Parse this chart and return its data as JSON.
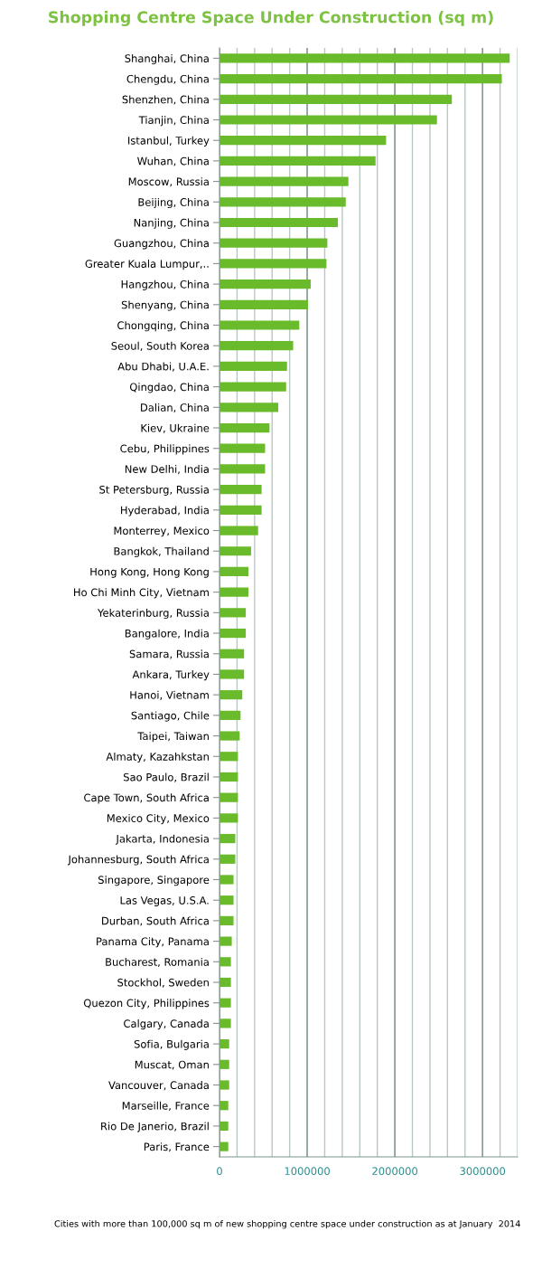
{
  "chart_data": {
    "type": "bar",
    "orientation": "horizontal",
    "title": "Shopping Centre Space Under Construction (sq m)",
    "categories": [
      "Shanghai, China",
      "Chengdu, China",
      "Shenzhen, China",
      "Tianjin, China",
      "Istanbul, Turkey",
      "Wuhan, China",
      "Moscow, Russia",
      "Beijing, China",
      "Nanjing, China",
      "Guangzhou, China",
      "Greater Kuala Lumpur,..",
      "Hangzhou, China",
      "Shenyang, China",
      "Chongqing, China",
      "Seoul, South Korea",
      "Abu Dhabi, U.A.E.",
      "Qingdao, China",
      "Dalian, China",
      "Kiev, Ukraine",
      "Cebu, Philippines",
      "New Delhi, India",
      "St Petersburg, Russia",
      "Hyderabad, India",
      "Monterrey, Mexico",
      "Bangkok, Thailand",
      "Hong Kong, Hong Kong",
      "Ho Chi Minh City, Vietnam",
      "Yekaterinburg, Russia",
      "Bangalore, India",
      "Samara, Russia",
      "Ankara, Turkey",
      "Hanoi, Vietnam",
      "Santiago, Chile",
      "Taipei, Taiwan",
      "Almaty, Kazahkstan",
      "Sao Paulo, Brazil",
      "Cape Town, South Africa",
      "Mexico City, Mexico",
      "Jakarta, Indonesia",
      "Johannesburg, South Africa",
      "Singapore, Singapore",
      "Las Vegas, U.S.A.",
      "Durban, South Africa",
      "Panama City, Panama",
      "Bucharest, Romania",
      "Stockhol, Sweden",
      "Quezon City, Philippines",
      "Calgary, Canada",
      "Sofia, Bulgaria",
      "Muscat, Oman",
      "Vancouver, Canada",
      "Marseille, France",
      "Rio De Janerio, Brazil",
      "Paris, France"
    ],
    "values": [
      3310000,
      3220000,
      2650000,
      2480000,
      1900000,
      1780000,
      1470000,
      1440000,
      1350000,
      1230000,
      1220000,
      1040000,
      1010000,
      910000,
      840000,
      770000,
      760000,
      670000,
      570000,
      520000,
      520000,
      480000,
      480000,
      440000,
      360000,
      330000,
      330000,
      300000,
      300000,
      280000,
      280000,
      260000,
      240000,
      230000,
      210000,
      210000,
      210000,
      210000,
      180000,
      180000,
      160000,
      160000,
      160000,
      140000,
      130000,
      130000,
      130000,
      130000,
      110000,
      110000,
      110000,
      100000,
      100000,
      100000
    ],
    "color": "#6abb2b",
    "xlim": [
      0,
      3400000
    ],
    "xticks": [
      0,
      {
        "value": 200000,
        "label": null
      },
      {
        "value": 400000,
        "label": null
      },
      {
        "value": 600000,
        "label": null
      },
      {
        "value": 800000,
        "label": null
      },
      1000000,
      {
        "value": 1200000,
        "label": null
      },
      {
        "value": 1400000,
        "label": null
      },
      {
        "value": 1600000,
        "label": null
      },
      {
        "value": 1800000,
        "label": null
      },
      2000000,
      {
        "value": 2200000,
        "label": null
      },
      {
        "value": 2400000,
        "label": null
      },
      {
        "value": 2600000,
        "label": null
      },
      {
        "value": 2800000,
        "label": null
      },
      3000000,
      {
        "value": 3200000,
        "label": null
      },
      {
        "value": 3400000,
        "label": null
      }
    ],
    "grid": "x",
    "annotations": [
      "Cities with more than 100,000 sq m of new shopping centre space under construction as at January  2014"
    ]
  }
}
